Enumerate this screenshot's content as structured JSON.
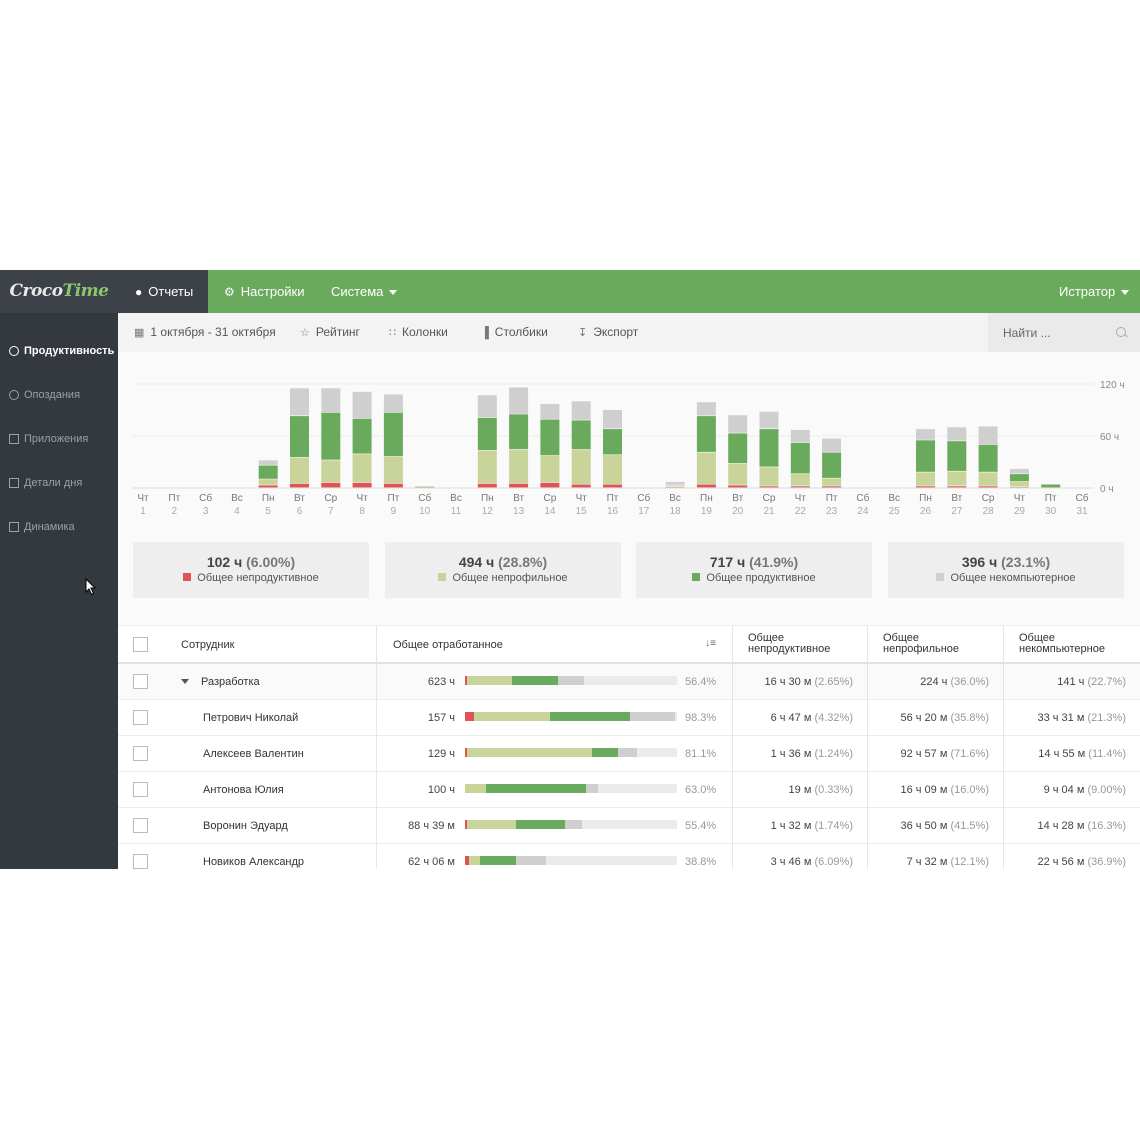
{
  "app": {
    "logo": {
      "part1": "Croco",
      "part2": "Time"
    },
    "nav": {
      "reports": "Отчеты",
      "settings": "Настройки",
      "system": "Система",
      "user": "Истратор"
    }
  },
  "sidebar": {
    "items": [
      {
        "label": "Продуктивность",
        "icon": "gauge-icon",
        "active": true
      },
      {
        "label": "Опоздания",
        "icon": "clock-icon",
        "active": false
      },
      {
        "label": "Приложения",
        "icon": "monitor-icon",
        "active": false
      },
      {
        "label": "Детали дня",
        "icon": "calendar-icon",
        "active": false
      },
      {
        "label": "Динамика",
        "icon": "chart-icon",
        "active": false
      }
    ]
  },
  "toolbar": {
    "date_range": "1 октября - 31 октября",
    "rating": "Рейтинг",
    "columns": "Колонки",
    "bars": "Столбики",
    "export": "Экспорт",
    "search_placeholder": "Найти ..."
  },
  "colors": {
    "unproductive": "#e05454",
    "nonprofile": "#c8d49a",
    "productive": "#6aaa5c",
    "noncomputer": "#cfcfcf"
  },
  "chart_data": {
    "type": "bar",
    "stacked": true,
    "categories": [
      "Чт",
      "Пт",
      "Сб",
      "Вс",
      "Пн",
      "Вт",
      "Ср",
      "Чт",
      "Пт",
      "Сб",
      "Вс",
      "Пн",
      "Вт",
      "Ср",
      "Чт",
      "Пт",
      "Сб",
      "Вс",
      "Пн",
      "Вт",
      "Ср",
      "Чт",
      "Пт",
      "Сб",
      "Вс",
      "Пн",
      "Вт",
      "Ср",
      "Чт",
      "Пт",
      "Сб"
    ],
    "days": [
      "1",
      "2",
      "3",
      "4",
      "5",
      "6",
      "7",
      "8",
      "9",
      "10",
      "11",
      "12",
      "13",
      "14",
      "15",
      "16",
      "17",
      "18",
      "19",
      "20",
      "21",
      "22",
      "23",
      "24",
      "25",
      "26",
      "27",
      "28",
      "29",
      "30",
      "31"
    ],
    "ylim": [
      0,
      120
    ],
    "yticks": [
      "120 ч",
      "60 ч",
      "0 ч"
    ],
    "series": [
      {
        "name": "Общее непродуктивное",
        "values": [
          0,
          0,
          0,
          0,
          3,
          5,
          6,
          6,
          5,
          1,
          0,
          5,
          5,
          6,
          4,
          4,
          0,
          1,
          4,
          3,
          2,
          2,
          2,
          0,
          0,
          2,
          2,
          2,
          1,
          0,
          0
        ]
      },
      {
        "name": "Общее непрофильное",
        "values": [
          0,
          0,
          0,
          0,
          7,
          30,
          26,
          33,
          31,
          0,
          0,
          38,
          39,
          31,
          40,
          34,
          0,
          2,
          37,
          25,
          22,
          14,
          9,
          0,
          0,
          16,
          17,
          16,
          6,
          0,
          0
        ]
      },
      {
        "name": "Общее продуктивное",
        "values": [
          0,
          0,
          0,
          0,
          16,
          48,
          55,
          41,
          51,
          1,
          0,
          38,
          41,
          42,
          34,
          30,
          0,
          0,
          42,
          35,
          44,
          36,
          30,
          0,
          0,
          37,
          35,
          32,
          9,
          4,
          0
        ]
      },
      {
        "name": "Общее некомпьютерное",
        "values": [
          0,
          0,
          0,
          0,
          6,
          32,
          28,
          31,
          21,
          0,
          0,
          26,
          31,
          18,
          22,
          22,
          0,
          4,
          16,
          21,
          20,
          15,
          16,
          0,
          0,
          13,
          16,
          21,
          6,
          0,
          0
        ]
      }
    ]
  },
  "summary": [
    {
      "value": "102 ч",
      "pct": "(6.00%)",
      "label": "Общее непродуктивное",
      "color": "#e05454"
    },
    {
      "value": "494 ч",
      "pct": "(28.8%)",
      "label": "Общее непрофильное",
      "color": "#c8d49a"
    },
    {
      "value": "717 ч",
      "pct": "(41.9%)",
      "label": "Общее продуктивное",
      "color": "#6aaa5c"
    },
    {
      "value": "396 ч",
      "pct": "(23.1%)",
      "label": "Общее некомпьютерное",
      "color": "#cfcfcf"
    }
  ],
  "table": {
    "headers": {
      "employee": "Сотрудник",
      "total": "Общее отработанное",
      "unproductive": [
        "Общее",
        "непродуктивное"
      ],
      "nonprofile": [
        "Общее",
        "непрофильное"
      ],
      "noncomputer": [
        "Общее",
        "некомпьютерное"
      ]
    },
    "rows": [
      {
        "name": "Разработка",
        "group": true,
        "total": "623 ч",
        "share": 0.564,
        "pct": "56.4%",
        "mix": [
          0.01,
          0.21,
          0.22,
          0.12
        ],
        "unprod": "16 ч 30 м",
        "unprod_p": "(2.65%)",
        "nonprof": "224 ч",
        "nonprof_p": "(36.0%)",
        "noncomp": "141 ч",
        "noncomp_p": "(22.7%)"
      },
      {
        "name": "Петрович Николай",
        "group": false,
        "total": "157 ч",
        "share": 0.983,
        "pct": "98.3%",
        "mix": [
          0.04,
          0.36,
          0.38,
          0.21
        ],
        "unprod": "6 ч 47 м",
        "unprod_p": "(4.32%)",
        "nonprof": "56 ч 20 м",
        "nonprof_p": "(35.8%)",
        "noncomp": "33 ч 31 м",
        "noncomp_p": "(21.3%)"
      },
      {
        "name": "Алексеев Валентин",
        "group": false,
        "total": "129 ч",
        "share": 0.811,
        "pct": "81.1%",
        "mix": [
          0.01,
          0.59,
          0.12,
          0.09
        ],
        "unprod": "1 ч 36 м",
        "unprod_p": "(1.24%)",
        "nonprof": "92 ч 57 м",
        "nonprof_p": "(71.6%)",
        "noncomp": "14 ч 55 м",
        "noncomp_p": "(11.4%)"
      },
      {
        "name": "Антонова Юлия",
        "group": false,
        "total": "100 ч",
        "share": 0.63,
        "pct": "63.0%",
        "mix": [
          0.0,
          0.1,
          0.47,
          0.06
        ],
        "unprod": "19 м",
        "unprod_p": "(0.33%)",
        "nonprof": "16 ч 09 м",
        "nonprof_p": "(16.0%)",
        "noncomp": "9 ч 04 м",
        "noncomp_p": "(9.00%)"
      },
      {
        "name": "Воронин Эдуард",
        "group": false,
        "total": "88 ч 39 м",
        "share": 0.554,
        "pct": "55.4%",
        "mix": [
          0.01,
          0.23,
          0.23,
          0.08
        ],
        "unprod": "1 ч 32 м",
        "unprod_p": "(1.74%)",
        "nonprof": "36 ч 50 м",
        "nonprof_p": "(41.5%)",
        "noncomp": "14 ч 28 м",
        "noncomp_p": "(16.3%)"
      },
      {
        "name": "Новиков Александр",
        "group": false,
        "total": "62 ч 06 м",
        "share": 0.388,
        "pct": "38.8%",
        "mix": [
          0.02,
          0.05,
          0.17,
          0.14
        ],
        "unprod": "3 ч 46 м",
        "unprod_p": "(6.09%)",
        "nonprof": "7 ч 32 м",
        "nonprof_p": "(12.1%)",
        "noncomp": "22 ч 56 м",
        "noncomp_p": "(36.9%)"
      }
    ]
  }
}
